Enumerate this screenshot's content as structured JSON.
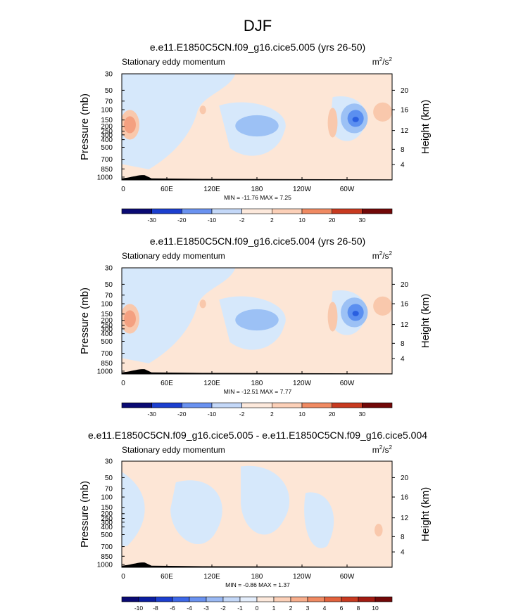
{
  "figure": {
    "title": "DJF"
  },
  "colors": {
    "plot_bg": "#fde6d6",
    "light_blue": "#d6e8fb",
    "mid_blue": "#9cc1f5",
    "strong_blue": "#5b8ff0",
    "deep_blue": "#2a5fe0",
    "light_red": "#f9c8ac",
    "mid_red": "#f4a080",
    "topo": "#000000"
  },
  "palette": [
    "#0a0a73",
    "#0b1ea0",
    "#1c3fcf",
    "#3d68e8",
    "#6a92f0",
    "#9ab9f4",
    "#c4d8f8",
    "#e4eefc",
    "#fde9dc",
    "#fcd0b8",
    "#f8ae8c",
    "#f08a62",
    "#e2623d",
    "#c83a20",
    "#a21b12",
    "#720808"
  ],
  "chart_data": [
    {
      "type": "heatmap",
      "title": "e.e11.E1850C5CN.f09_g16.cice5.005 (yrs 26-50)",
      "left_label": "Stationary eddy momentum",
      "right_label": "m²/s²",
      "ylabel": "Pressure (mb)",
      "ylabel_right": "Height (km)",
      "x_ticks": [
        "0",
        "60E",
        "120E",
        "180",
        "120W",
        "60W"
      ],
      "y_ticks": [
        "30",
        "50",
        "70",
        "100",
        "150",
        "200",
        "250",
        "300",
        "400",
        "500",
        "700",
        "850",
        "1000"
      ],
      "height_ticks": [
        "20",
        "16",
        "12",
        "8",
        "4"
      ],
      "stats": "MIN = -11.76  MAX =  7.25",
      "colorbar_ticks": [
        "-30",
        "-20",
        "-10",
        "-2",
        "2",
        "10",
        "20",
        "30"
      ],
      "min": -11.76,
      "max": 7.25
    },
    {
      "type": "heatmap",
      "title": "e.e11.E1850C5CN.f09_g16.cice5.004 (yrs 26-50)",
      "left_label": "Stationary eddy momentum",
      "right_label": "m²/s²",
      "ylabel": "Pressure (mb)",
      "ylabel_right": "Height (km)",
      "x_ticks": [
        "0",
        "60E",
        "120E",
        "180",
        "120W",
        "60W"
      ],
      "y_ticks": [
        "30",
        "50",
        "70",
        "100",
        "150",
        "200",
        "250",
        "300",
        "400",
        "500",
        "700",
        "850",
        "1000"
      ],
      "height_ticks": [
        "20",
        "16",
        "12",
        "8",
        "4"
      ],
      "stats": "MIN = -12.51  MAX =  7.77",
      "colorbar_ticks": [
        "-30",
        "-20",
        "-10",
        "-2",
        "2",
        "10",
        "20",
        "30"
      ],
      "min": -12.51,
      "max": 7.77
    },
    {
      "type": "heatmap",
      "title": "e.e11.E1850C5CN.f09_g16.cice5.005 - e.e11.E1850C5CN.f09_g16.cice5.004",
      "left_label": "Stationary eddy momentum",
      "right_label": "m²/s²",
      "ylabel": "Pressure (mb)",
      "ylabel_right": "Height (km)",
      "x_ticks": [
        "0",
        "60E",
        "120E",
        "180",
        "120W",
        "60W"
      ],
      "y_ticks": [
        "30",
        "50",
        "70",
        "100",
        "150",
        "200",
        "250",
        "300",
        "400",
        "500",
        "700",
        "850",
        "1000"
      ],
      "height_ticks": [
        "20",
        "16",
        "12",
        "8",
        "4"
      ],
      "stats": "MIN = -0.86  MAX =  1.37",
      "colorbar_ticks": [
        "-10",
        "-8",
        "-6",
        "-4",
        "-3",
        "-2",
        "-1",
        "0",
        "1",
        "2",
        "3",
        "4",
        "6",
        "8",
        "10"
      ],
      "min": -0.86,
      "max": 1.37
    }
  ]
}
